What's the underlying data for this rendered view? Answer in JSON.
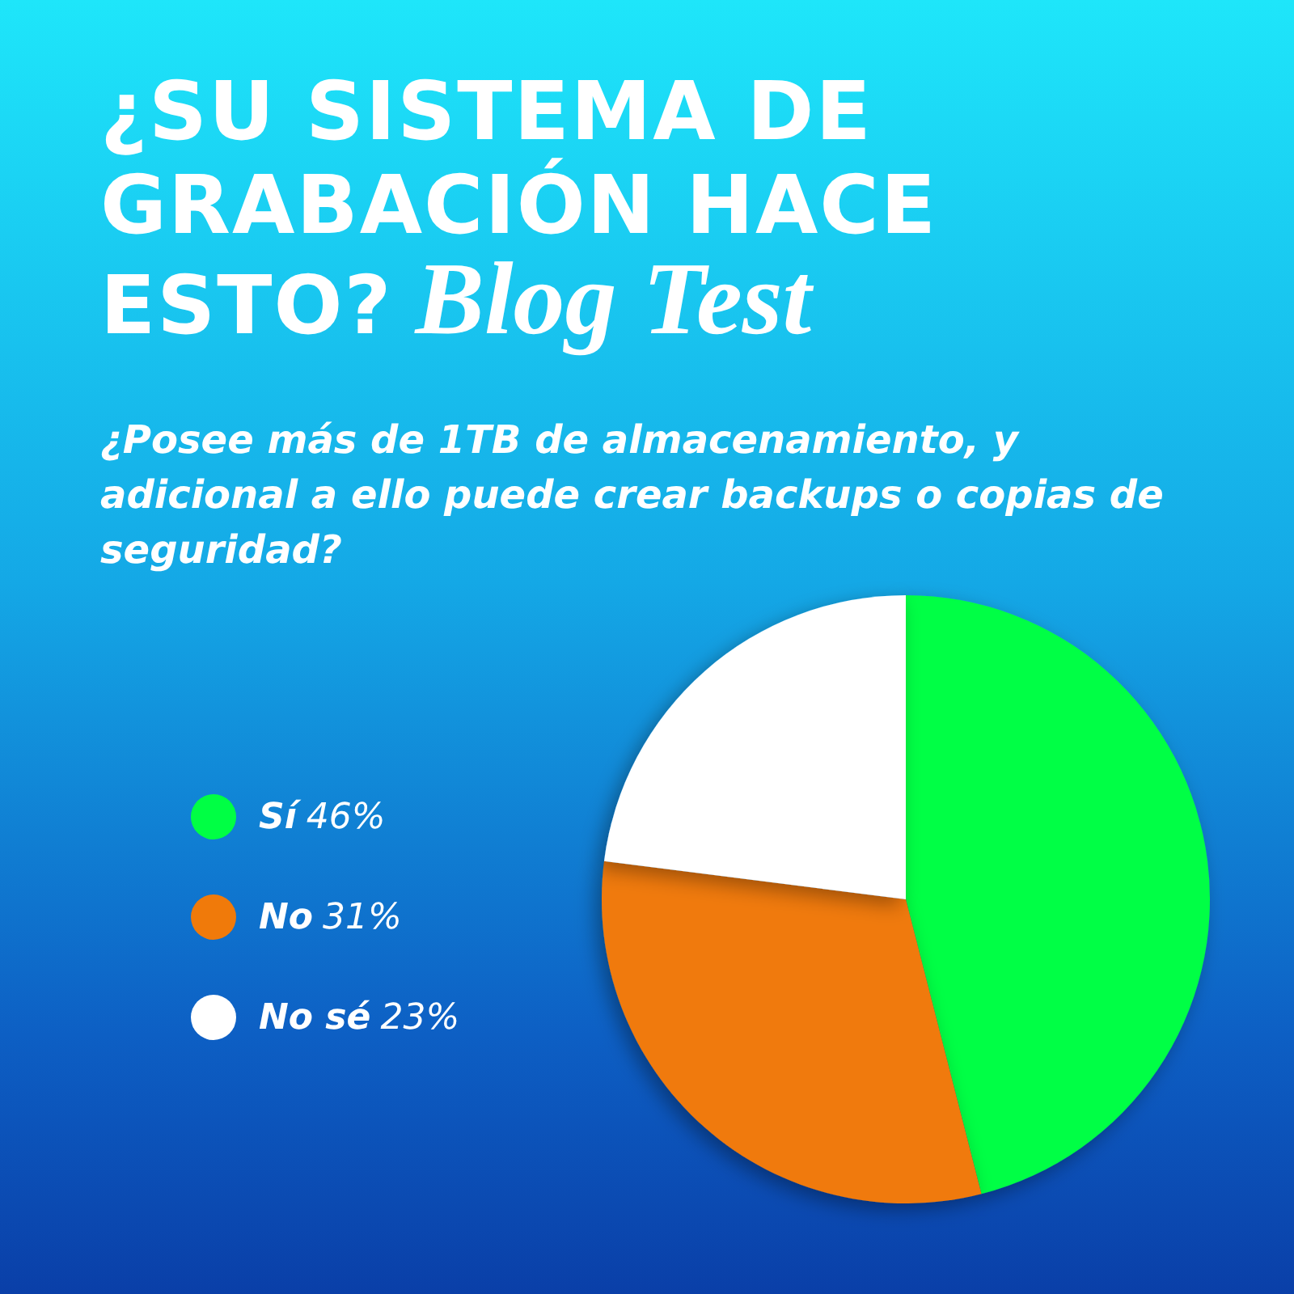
{
  "chart_data": {
    "type": "pie",
    "title": "¿SU SISTEMA DE GRABACIÓN HACE ESTO?",
    "subtitle": "¿Posee más de 1TB de almacenamiento, y adicional a ello puede crear backups o copias de seguridad?",
    "annotations": [
      "Blog Test"
    ],
    "categories": [
      "Sí",
      "No",
      "No sé"
    ],
    "values": [
      46,
      31,
      23
    ],
    "value_labels": [
      "46%",
      "31%",
      "23%"
    ],
    "colors": [
      "#00ff44",
      "#f07a0a",
      "#ffffff"
    ],
    "legend": "left"
  }
}
